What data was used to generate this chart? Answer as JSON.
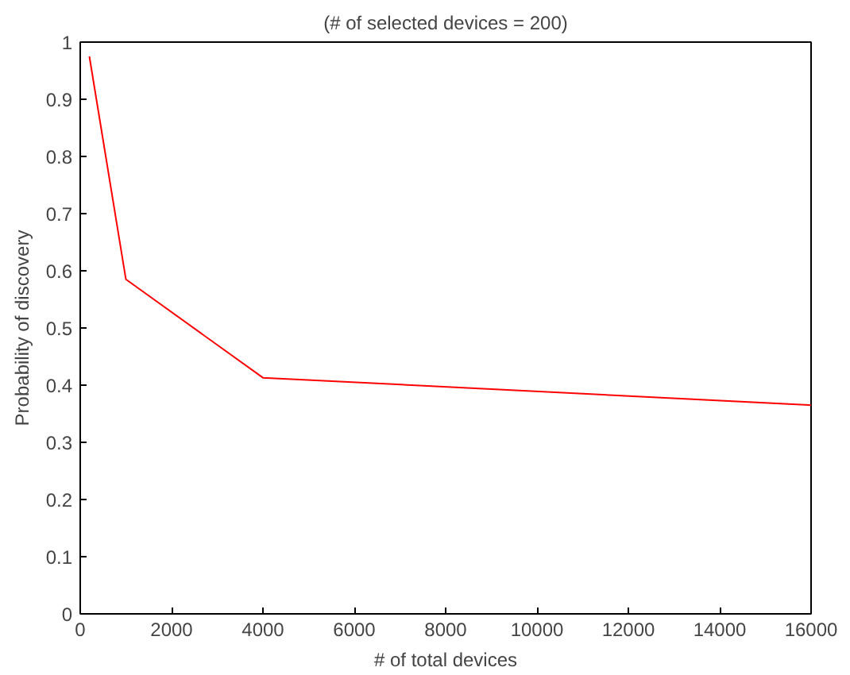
{
  "chart_data": {
    "type": "line",
    "title": "(# of selected devices = 200)",
    "xlabel": "# of total devices",
    "ylabel": "Probability of discovery",
    "x": [
      200,
      1000,
      4000,
      16000
    ],
    "series": [
      {
        "color": "#ff0000",
        "values": [
          0.975,
          0.585,
          0.413,
          0.365
        ]
      }
    ],
    "xlim": [
      0,
      16000
    ],
    "xticks": [
      0,
      2000,
      4000,
      6000,
      8000,
      10000,
      12000,
      14000,
      16000
    ],
    "ylim": [
      0,
      1
    ],
    "yticks": [
      0,
      0.1,
      0.2,
      0.3,
      0.4,
      0.5,
      0.6,
      0.7,
      0.8,
      0.9,
      1
    ],
    "grid": false,
    "line_style": "solid"
  }
}
